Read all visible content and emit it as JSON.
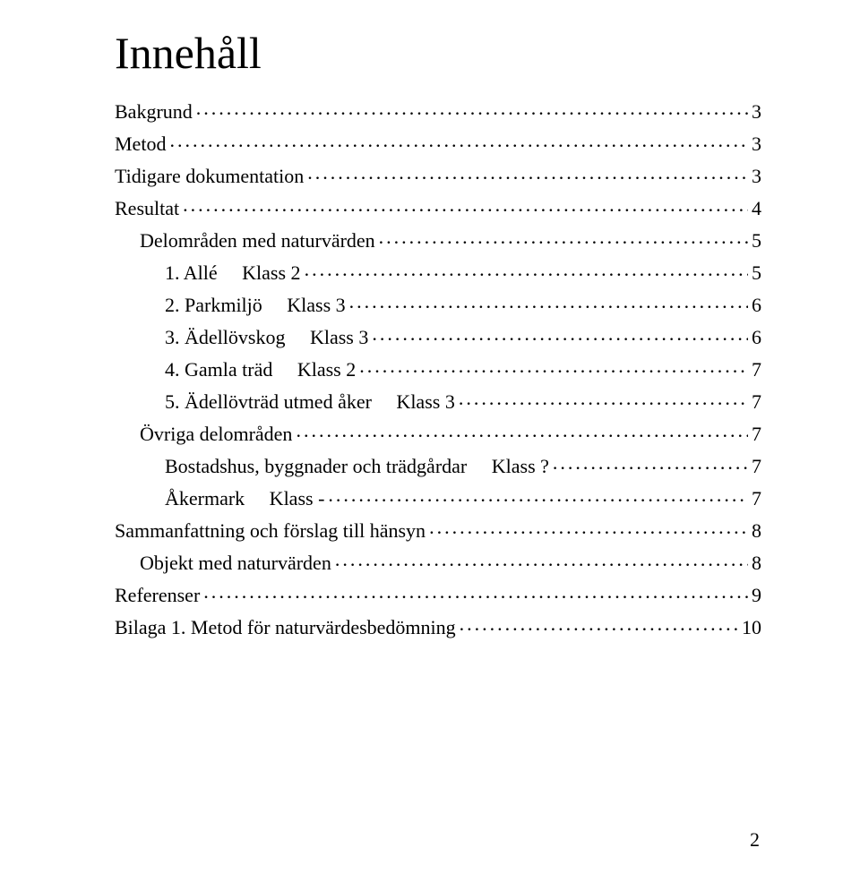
{
  "doc": {
    "title": "Innehåll",
    "page_number": "2",
    "text_color": "#000000",
    "background_color": "#ffffff",
    "font_family": "Garamond"
  },
  "toc": {
    "entries": [
      {
        "label": "Bakgrund",
        "page": "3",
        "indent": 0
      },
      {
        "label": "Metod",
        "page": "3",
        "indent": 0
      },
      {
        "label": "Tidigare dokumentation",
        "page": "3",
        "indent": 0
      },
      {
        "label": "Resultat",
        "page": "4",
        "indent": 0
      },
      {
        "label": "Delområden med naturvärden",
        "page": "5",
        "indent": 1
      },
      {
        "label": "1. Allé     Klass 2",
        "page": "5",
        "indent": 2
      },
      {
        "label": "2. Parkmiljö     Klass 3",
        "page": "6",
        "indent": 2
      },
      {
        "label": "3. Ädellövskog     Klass 3",
        "page": "6",
        "indent": 2
      },
      {
        "label": "4. Gamla träd     Klass 2",
        "page": "7",
        "indent": 2
      },
      {
        "label": "5. Ädellövträd utmed åker     Klass 3",
        "page": "7",
        "indent": 2
      },
      {
        "label": "Övriga delområden",
        "page": "7",
        "indent": 1
      },
      {
        "label": "Bostadshus, byggnader och trädgårdar     Klass ?",
        "page": "7",
        "indent": 2
      },
      {
        "label": "Åkermark     Klass -",
        "page": "7",
        "indent": 2
      },
      {
        "label": "Sammanfattning och förslag till hänsyn",
        "page": "8",
        "indent": 0
      },
      {
        "label": "Objekt med naturvärden",
        "page": "8",
        "indent": 1
      },
      {
        "label": "Referenser",
        "page": "9",
        "indent": 0
      },
      {
        "label": "Bilaga 1. Metod för naturvärdesbedömning",
        "page": "10",
        "indent": 0
      }
    ]
  }
}
